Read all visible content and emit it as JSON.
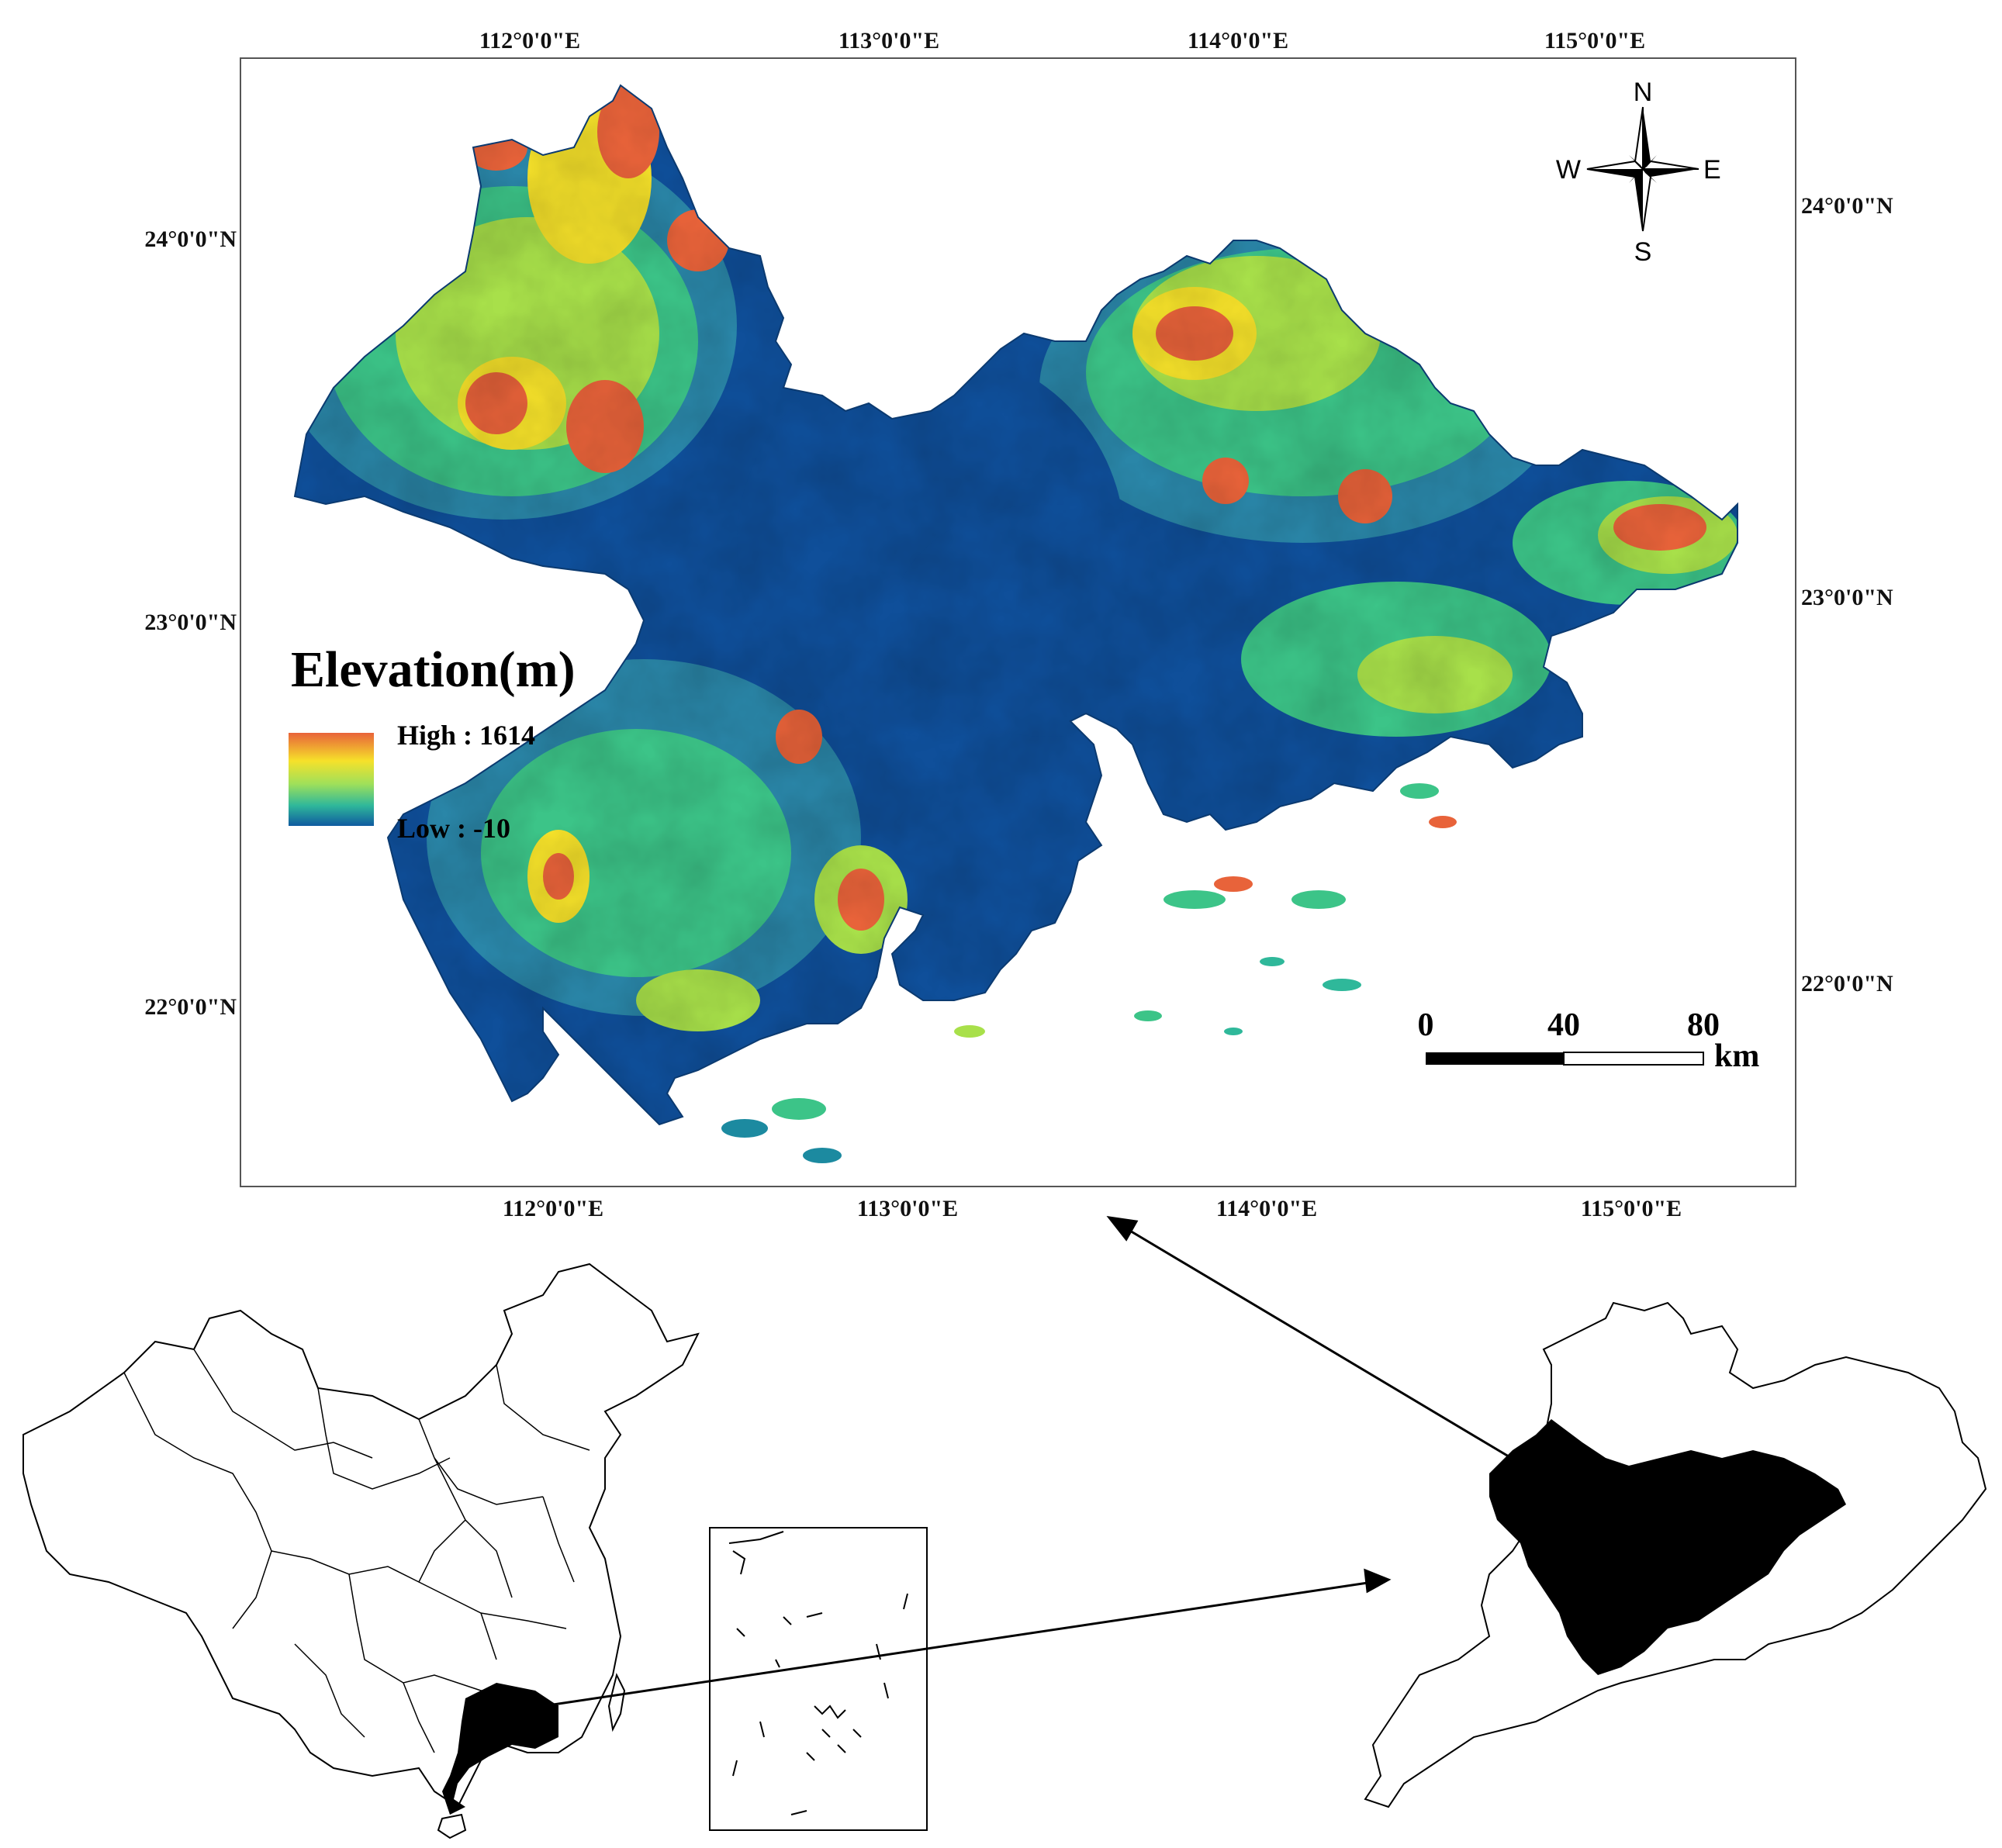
{
  "map": {
    "top_axis": [
      "112°0'0\"E",
      "113°0'0\"E",
      "114°0'0\"E",
      "115°0'0\"E"
    ],
    "bottom_axis": [
      "112°0'0\"E",
      "113°0'0\"E",
      "114°0'0\"E",
      "115°0'0\"E"
    ],
    "left_axis": [
      "24°0'0\"N",
      "23°0'0\"N",
      "22°0'0\"N"
    ],
    "right_axis": [
      "24°0'0\"N",
      "23°0'0\"N",
      "22°0'0\"N"
    ],
    "legend": {
      "title": "Elevation(m)",
      "high_label": "High : 1614",
      "low_label": "Low : -10",
      "colors": [
        "#e8633a",
        "#f6e12a",
        "#9fe05a",
        "#2fb89a",
        "#0f5aa0"
      ]
    },
    "compass": {
      "n": "N",
      "s": "S",
      "e": "E",
      "w": "W"
    },
    "scale_bar": {
      "ticks": [
        "0",
        "40",
        "80"
      ],
      "unit": "km"
    },
    "elevation_colors": {
      "low": "#0f4f9a",
      "low_mid": "#2a86a8",
      "mid": "#3cc488",
      "mid_high": "#a8e04a",
      "high": "#f4e02a",
      "peak": "#e8633a"
    }
  },
  "insets": {
    "fill_color": "#000000",
    "outline_color": "#000000"
  }
}
